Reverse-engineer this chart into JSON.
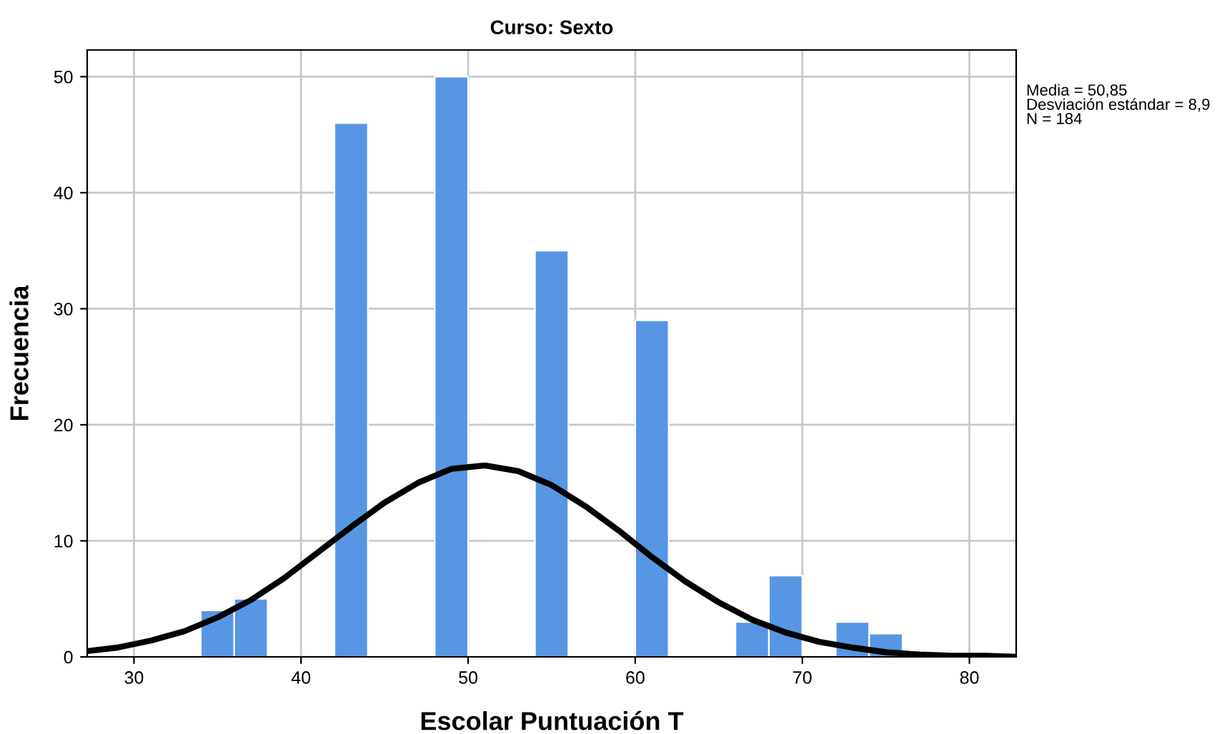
{
  "chart_data": {
    "type": "histogram",
    "title": "Curso: Sexto",
    "xlabel": "Escolar Puntuación T",
    "ylabel": "Frecuencia",
    "annotations": [
      "Media = 50,85",
      "Desviación estándar = 8,9",
      "N = 184"
    ],
    "series": [
      {
        "color": "#5796e3",
        "bins": [
          34,
          36,
          38,
          40,
          42,
          44,
          46,
          48,
          50,
          52,
          54,
          56,
          58,
          60,
          62,
          64,
          66,
          68,
          70,
          72,
          74,
          76
        ],
        "values": [
          4,
          5,
          0,
          0,
          46,
          0,
          0,
          50,
          0,
          0,
          35,
          0,
          0,
          29,
          0,
          0,
          3,
          7,
          0,
          3,
          2
        ]
      },
      {
        "type": "line",
        "color": "#000000",
        "x": [
          27.2,
          29,
          31,
          33,
          35,
          37,
          39,
          41,
          43,
          45,
          47,
          49,
          51,
          53,
          55,
          57,
          59,
          61,
          63,
          65,
          67,
          69,
          71,
          73,
          75,
          77,
          79,
          81,
          82.8
        ],
        "values": [
          0.5,
          0.8,
          1.4,
          2.2,
          3.4,
          4.9,
          6.8,
          9.0,
          11.2,
          13.3,
          15.0,
          16.2,
          16.5,
          16.0,
          14.8,
          13.0,
          10.9,
          8.6,
          6.5,
          4.7,
          3.2,
          2.1,
          1.3,
          0.8,
          0.4,
          0.2,
          0.1,
          0.1,
          0.0
        ]
      }
    ],
    "xlim": [
      27.2,
      82.8
    ],
    "ylim": [
      0,
      52.3
    ],
    "xticks": [
      30,
      40,
      50,
      60,
      70,
      80
    ],
    "yticks": [
      0,
      10,
      20,
      30,
      40,
      50
    ],
    "grid": true,
    "legend": false
  }
}
